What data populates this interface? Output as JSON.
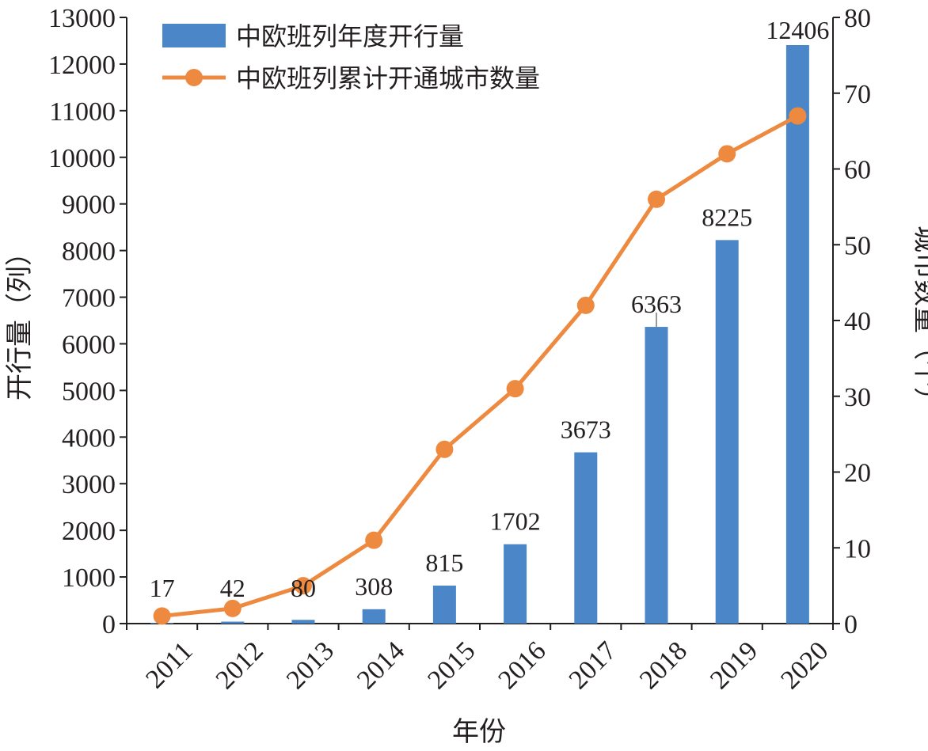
{
  "chart_data": {
    "type": "bar",
    "categories": [
      "2011",
      "2012",
      "2013",
      "2014",
      "2015",
      "2016",
      "2017",
      "2018",
      "2019",
      "2020"
    ],
    "series": [
      {
        "name": "中欧班列年度开行量",
        "type": "bar",
        "axis": "left",
        "color": "#4a86c8",
        "values": [
          17,
          42,
          80,
          308,
          815,
          1702,
          3673,
          6363,
          8225,
          12406
        ],
        "data_labels": [
          "17",
          "42",
          "80",
          "308",
          "815",
          "1702",
          "3673",
          "6363",
          "8225",
          "12406"
        ]
      },
      {
        "name": "中欧班列累计开通城市数量",
        "type": "line",
        "axis": "right",
        "color": "#ed8a3f",
        "values": [
          1,
          2,
          5,
          11,
          23,
          31,
          42,
          56,
          62,
          67
        ]
      }
    ],
    "xlabel": "年份",
    "ylabel": "开行量（列）",
    "y2label": "城市数量（个）",
    "ylim": [
      0,
      13000
    ],
    "y2lim": [
      0,
      80
    ],
    "yticks": [
      "0",
      "1000",
      "2000",
      "3000",
      "4000",
      "5000",
      "6000",
      "7000",
      "8000",
      "9000",
      "10000",
      "11000",
      "12000",
      "13000"
    ],
    "y2ticks": [
      "0",
      "10",
      "20",
      "30",
      "40",
      "50",
      "60",
      "70",
      "80"
    ],
    "legend_position": "top-left",
    "grid": false,
    "xtick_rotation": -45
  }
}
